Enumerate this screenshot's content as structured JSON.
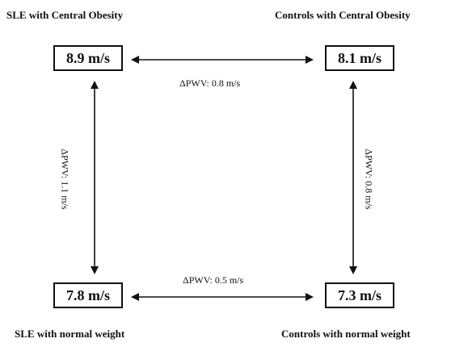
{
  "groups": {
    "top_left": {
      "label": "SLE with Central Obesity",
      "value": "8.9 m/s"
    },
    "top_right": {
      "label": "Controls with Central Obesity",
      "value": "8.1 m/s"
    },
    "bottom_left": {
      "label": "SLE with normal weight",
      "value": "7.8 m/s"
    },
    "bottom_right": {
      "label": "Controls with normal weight",
      "value": "7.3 m/s"
    }
  },
  "differences": {
    "top": "ΔPWV: 0.8 m/s",
    "bottom": "ΔPWV: 0.5 m/s",
    "left": "ΔPWV: 1.1 m/s",
    "right": "ΔPWV: 0.8 m/s"
  },
  "colors": {
    "ink": "#111111",
    "background": "#ffffff"
  }
}
